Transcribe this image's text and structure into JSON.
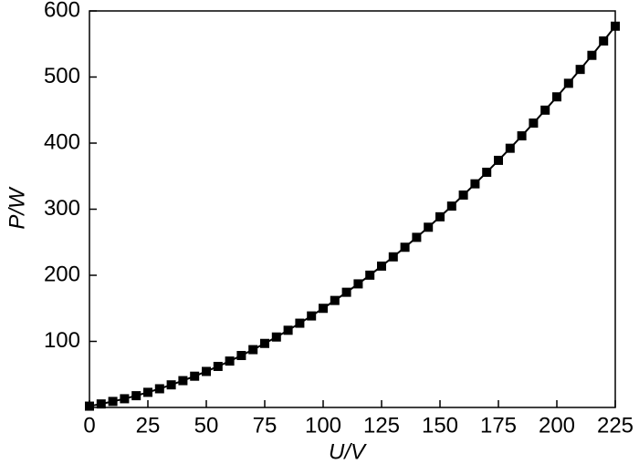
{
  "chart_data": {
    "type": "line",
    "xlabel": "U/V",
    "ylabel": "P/W",
    "x": [
      0,
      5,
      10,
      15,
      20,
      25,
      30,
      35,
      40,
      45,
      50,
      55,
      60,
      65,
      70,
      75,
      80,
      85,
      90,
      95,
      100,
      105,
      110,
      115,
      120,
      125,
      130,
      135,
      140,
      145,
      150,
      155,
      160,
      165,
      170,
      175,
      180,
      185,
      190,
      195,
      200,
      205,
      210,
      215,
      220,
      225
    ],
    "series": [
      {
        "color": "#000000",
        "values": [
          2,
          5.3,
          9.1,
          13.2,
          17.8,
          22.9,
          28.3,
          34.2,
          40.6,
          47.3,
          54.5,
          62.1,
          70.2,
          78.6,
          87.5,
          96.9,
          106.6,
          116.8,
          127.5,
          138.5,
          150,
          161.9,
          174.3,
          187.0,
          200.2,
          213.9,
          227.9,
          242.4,
          257.4,
          272.7,
          288.5,
          304.7,
          321.4,
          338.4,
          355.9,
          373.9,
          392.2,
          411.0,
          430.3,
          449.9,
          470,
          490.5,
          511.5,
          532.8,
          554.6,
          576.9
        ]
      }
    ],
    "xlim": [
      0,
      225
    ],
    "xticks": [
      0,
      25,
      50,
      75,
      100,
      125,
      150,
      175,
      200,
      225
    ],
    "ylim": [
      0,
      600
    ],
    "yticks": [
      100,
      200,
      300,
      400,
      500,
      600
    ]
  }
}
